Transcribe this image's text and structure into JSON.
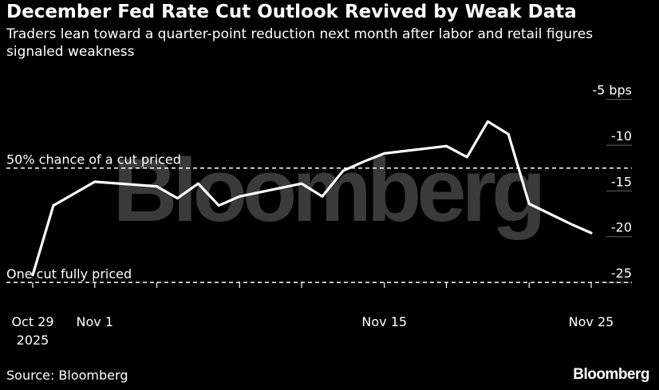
{
  "header": {
    "title": "December Fed Rate Cut Outlook Revived by Weak Data",
    "subtitle": "Traders lean toward a quarter-point reduction next month after labor and retail figures signaled weakness"
  },
  "footer": {
    "source": "Source: Bloomberg",
    "brand": "Bloomberg"
  },
  "watermark": "Bloomberg",
  "colors": {
    "background": "#000000",
    "line": "#ffffff",
    "grid": "#555555",
    "watermark": "#3a3a3a"
  },
  "chart_data": {
    "type": "line",
    "title": "December Fed Rate Cut Outlook Revived by Weak Data",
    "ylabel": "",
    "xlabel": "",
    "ylim": [
      -27,
      -4.5
    ],
    "y_ticks": [
      {
        "value": -5,
        "label": "-5 bps"
      },
      {
        "value": -10,
        "label": "-10"
      },
      {
        "value": -15,
        "label": "-15"
      },
      {
        "value": -20,
        "label": "-20"
      },
      {
        "value": -25,
        "label": "-25"
      }
    ],
    "x_ticks": [
      {
        "date": "2025-10-29",
        "label": "Oct 29",
        "sublabel": "2025"
      },
      {
        "date": "2025-11-01",
        "label": "Nov 1",
        "sublabel": ""
      },
      {
        "date": "2025-11-15",
        "label": "Nov 15",
        "sublabel": ""
      },
      {
        "date": "2025-11-25",
        "label": "Nov 25",
        "sublabel": ""
      }
    ],
    "x_minor_ticks": [
      "2025-10-29",
      "2025-11-01",
      "2025-11-04",
      "2025-11-08",
      "2025-11-11",
      "2025-11-15",
      "2025-11-18",
      "2025-11-22",
      "2025-11-25"
    ],
    "xlim": [
      "2025-10-29",
      "2025-11-25"
    ],
    "reference_lines": [
      {
        "value": -12.5,
        "label": "50% chance of a cut priced"
      },
      {
        "value": -25,
        "label": "One cut fully priced"
      }
    ],
    "series": [
      {
        "name": "",
        "points": [
          {
            "x": "2025-10-29",
            "y": -24.2
          },
          {
            "x": "2025-10-30",
            "y": -16.6
          },
          {
            "x": "2025-11-01",
            "y": -14.0
          },
          {
            "x": "2025-11-04",
            "y": -14.5
          },
          {
            "x": "2025-11-05",
            "y": -15.8
          },
          {
            "x": "2025-11-06",
            "y": -14.2
          },
          {
            "x": "2025-11-07",
            "y": -16.6
          },
          {
            "x": "2025-11-08",
            "y": -15.6
          },
          {
            "x": "2025-11-11",
            "y": -14.2
          },
          {
            "x": "2025-11-12",
            "y": -15.6
          },
          {
            "x": "2025-11-13",
            "y": -12.8
          },
          {
            "x": "2025-11-14",
            "y": -11.8
          },
          {
            "x": "2025-11-15",
            "y": -10.9
          },
          {
            "x": "2025-11-18",
            "y": -10.1
          },
          {
            "x": "2025-11-19",
            "y": -11.3
          },
          {
            "x": "2025-11-20",
            "y": -7.4
          },
          {
            "x": "2025-11-21",
            "y": -8.8
          },
          {
            "x": "2025-11-22",
            "y": -16.4
          },
          {
            "x": "2025-11-24",
            "y": -18.6
          },
          {
            "x": "2025-11-25",
            "y": -19.6
          }
        ]
      }
    ]
  }
}
